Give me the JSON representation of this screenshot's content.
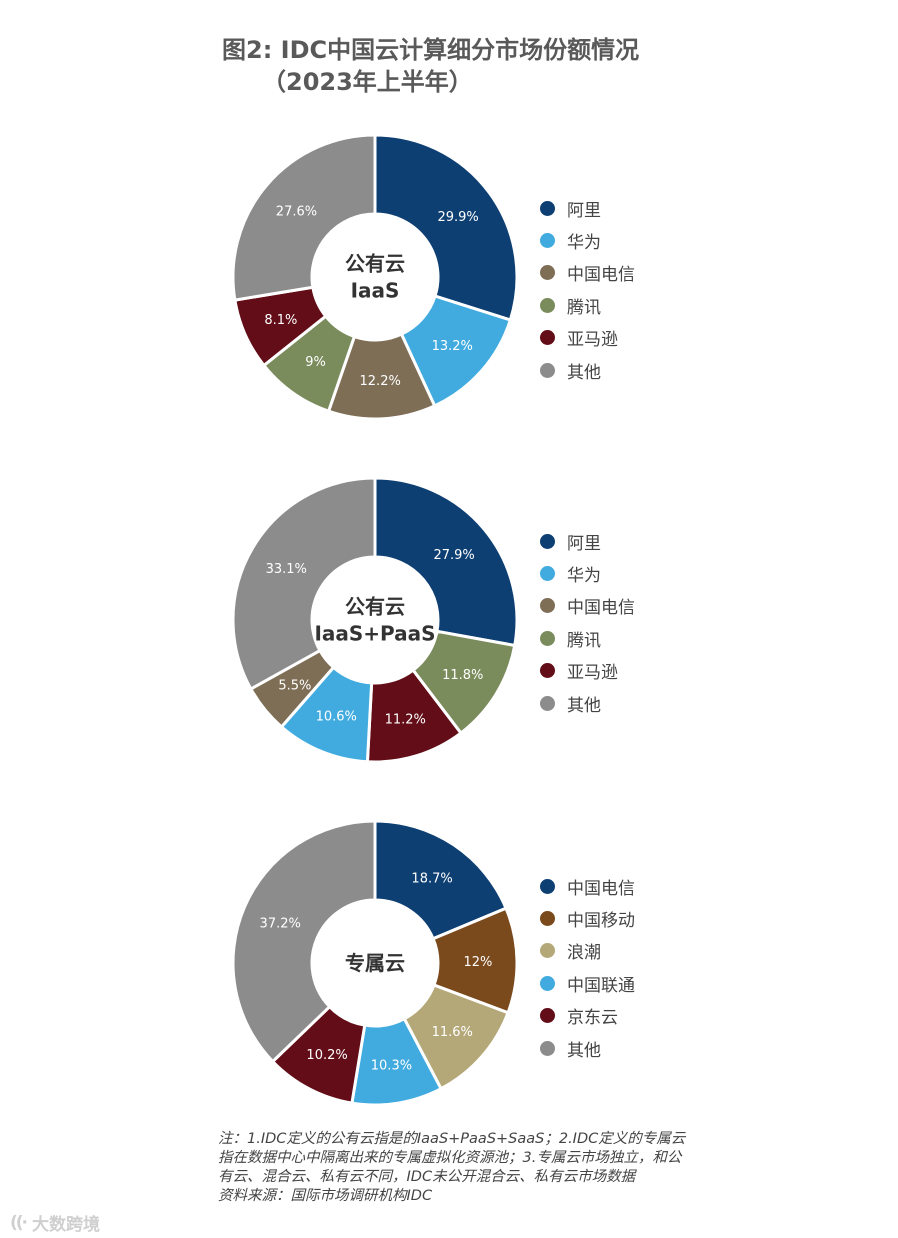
{
  "title": {
    "line1": "图2: IDC中国云计算细分市场份额情况",
    "line2": "（2023年上半年）"
  },
  "chart_data": [
    {
      "type": "pie",
      "center_label": [
        "公有云",
        "IaaS"
      ],
      "categories": [
        "阿里",
        "华为",
        "中国电信",
        "腾讯",
        "亚马逊",
        "其他"
      ],
      "values": [
        29.9,
        13.2,
        12.2,
        9,
        8.1,
        27.6
      ],
      "labels": [
        "29.9%",
        "13.2%",
        "12.2%",
        "9%",
        "8.1%",
        "27.6%"
      ],
      "colors": [
        "#0e3f73",
        "#41abe0",
        "#7f6e56",
        "#7a8b5c",
        "#620d17",
        "#8c8c8c"
      ],
      "legend": [
        "阿里",
        "华为",
        "中国电信",
        "腾讯",
        "亚马逊",
        "其他"
      ],
      "legend_colors": [
        "#0e3f73",
        "#41abe0",
        "#7f6e56",
        "#7a8b5c",
        "#620d17",
        "#8c8c8c"
      ],
      "legend_position": "right"
    },
    {
      "type": "pie",
      "center_label": [
        "公有云",
        "IaaS+PaaS"
      ],
      "categories": [
        "阿里",
        "腾讯",
        "亚马逊",
        "华为",
        "中国电信",
        "其他"
      ],
      "values": [
        27.9,
        11.8,
        11.2,
        10.6,
        5.5,
        33.1
      ],
      "labels": [
        "27.9%",
        "11.8%",
        "11.2%",
        "10.6%",
        "5.5%",
        "33.1%"
      ],
      "colors": [
        "#0e3f73",
        "#7a8b5c",
        "#620d17",
        "#41abe0",
        "#7f6e56",
        "#8c8c8c"
      ],
      "legend": [
        "阿里",
        "华为",
        "中国电信",
        "腾讯",
        "亚马逊",
        "其他"
      ],
      "legend_colors": [
        "#0e3f73",
        "#41abe0",
        "#7f6e56",
        "#7a8b5c",
        "#620d17",
        "#8c8c8c"
      ],
      "legend_position": "right"
    },
    {
      "type": "pie",
      "center_label": [
        "专属云"
      ],
      "categories": [
        "中国电信",
        "中国移动",
        "浪潮",
        "中国联通",
        "京东云",
        "其他"
      ],
      "values": [
        18.7,
        12,
        11.6,
        10.3,
        10.2,
        37.2
      ],
      "labels": [
        "18.7%",
        "12%",
        "11.6%",
        "10.3%",
        "10.2%",
        "37.2%"
      ],
      "colors": [
        "#0e3f73",
        "#7b4a1c",
        "#b5a878",
        "#41abe0",
        "#620d17",
        "#8c8c8c"
      ],
      "legend": [
        "中国电信",
        "中国移动",
        "浪潮",
        "中国联通",
        "京东云",
        "其他"
      ],
      "legend_colors": [
        "#0e3f73",
        "#7b4a1c",
        "#b5a878",
        "#41abe0",
        "#620d17",
        "#8c8c8c"
      ],
      "legend_position": "right"
    }
  ],
  "note": {
    "line1": "注：1.IDC定义的公有云指是的IaaS+PaaS+SaaS；2.IDC定义的专属云指在数据中心中隔离出来的专属虚拟化资源池；3.专属云市场独立，和公有云、混合云、私有云不同，IDC未公开混合云、私有云市场数据",
    "source": "资料来源：国际市场调研机构IDC"
  },
  "watermark": "大数跨境"
}
